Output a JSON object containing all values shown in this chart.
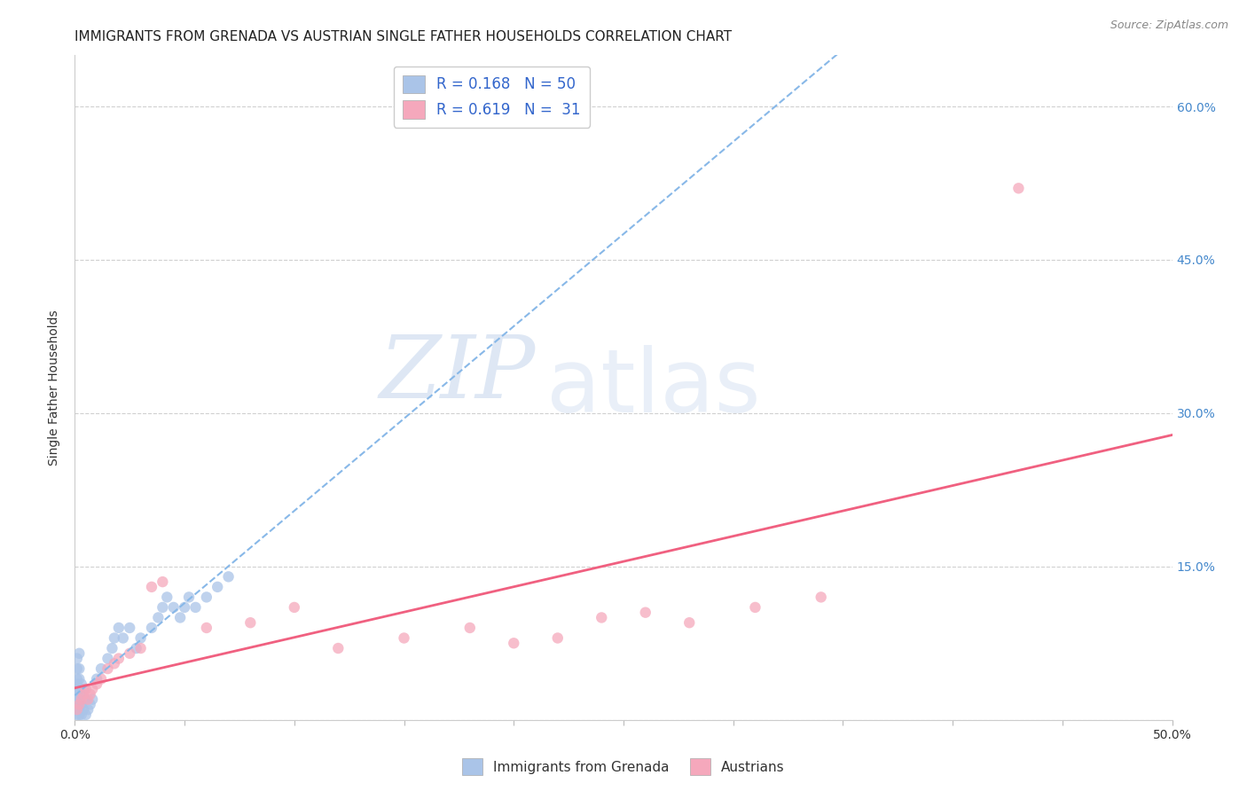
{
  "title": "IMMIGRANTS FROM GRENADA VS AUSTRIAN SINGLE FATHER HOUSEHOLDS CORRELATION CHART",
  "source": "Source: ZipAtlas.com",
  "ylabel": "Single Father Households",
  "xlim": [
    0.0,
    0.5
  ],
  "ylim": [
    0.0,
    0.65
  ],
  "xticks": [
    0.0,
    0.05,
    0.1,
    0.15,
    0.2,
    0.25,
    0.3,
    0.35,
    0.4,
    0.45,
    0.5
  ],
  "ytick_positions": [
    0.0,
    0.15,
    0.3,
    0.45,
    0.6
  ],
  "right_ytick_positions": [
    0.15,
    0.3,
    0.45,
    0.6
  ],
  "right_ytick_labels": [
    "15.0%",
    "30.0%",
    "45.0%",
    "60.0%"
  ],
  "grenada_x": [
    0.001,
    0.001,
    0.001,
    0.001,
    0.001,
    0.001,
    0.001,
    0.001,
    0.001,
    0.001,
    0.002,
    0.002,
    0.002,
    0.002,
    0.002,
    0.002,
    0.002,
    0.003,
    0.003,
    0.003,
    0.003,
    0.004,
    0.004,
    0.005,
    0.005,
    0.006,
    0.007,
    0.008,
    0.01,
    0.012,
    0.015,
    0.017,
    0.018,
    0.02,
    0.022,
    0.025,
    0.028,
    0.03,
    0.035,
    0.038,
    0.04,
    0.042,
    0.045,
    0.048,
    0.05,
    0.052,
    0.055,
    0.06,
    0.065,
    0.07
  ],
  "grenada_y": [
    0.005,
    0.01,
    0.015,
    0.02,
    0.025,
    0.03,
    0.035,
    0.04,
    0.05,
    0.06,
    0.005,
    0.01,
    0.02,
    0.03,
    0.04,
    0.05,
    0.065,
    0.005,
    0.015,
    0.025,
    0.035,
    0.01,
    0.03,
    0.005,
    0.02,
    0.01,
    0.015,
    0.02,
    0.04,
    0.05,
    0.06,
    0.07,
    0.08,
    0.09,
    0.08,
    0.09,
    0.07,
    0.08,
    0.09,
    0.1,
    0.11,
    0.12,
    0.11,
    0.1,
    0.11,
    0.12,
    0.11,
    0.12,
    0.13,
    0.14
  ],
  "austrian_x": [
    0.001,
    0.002,
    0.003,
    0.004,
    0.005,
    0.006,
    0.007,
    0.008,
    0.01,
    0.012,
    0.015,
    0.018,
    0.02,
    0.025,
    0.03,
    0.035,
    0.04,
    0.06,
    0.08,
    0.1,
    0.12,
    0.15,
    0.18,
    0.2,
    0.22,
    0.24,
    0.26,
    0.28,
    0.31,
    0.34,
    0.43
  ],
  "austrian_y": [
    0.01,
    0.015,
    0.02,
    0.025,
    0.03,
    0.02,
    0.025,
    0.03,
    0.035,
    0.04,
    0.05,
    0.055,
    0.06,
    0.065,
    0.07,
    0.13,
    0.135,
    0.09,
    0.095,
    0.11,
    0.07,
    0.08,
    0.09,
    0.075,
    0.08,
    0.1,
    0.105,
    0.095,
    0.11,
    0.12,
    0.52
  ],
  "grenada_color": "#aac4e8",
  "austrian_color": "#f5a8bc",
  "grenada_line_color": "#88b8e8",
  "austrian_line_color": "#f06080",
  "grenada_R": 0.168,
  "grenada_N": 50,
  "austrian_R": 0.619,
  "austrian_N": 31,
  "watermark_zip": "ZIP",
  "watermark_atlas": "atlas",
  "grid_color": "#d0d0d0",
  "background_color": "#ffffff",
  "title_fontsize": 11,
  "source_fontsize": 9,
  "marker_size": 80
}
